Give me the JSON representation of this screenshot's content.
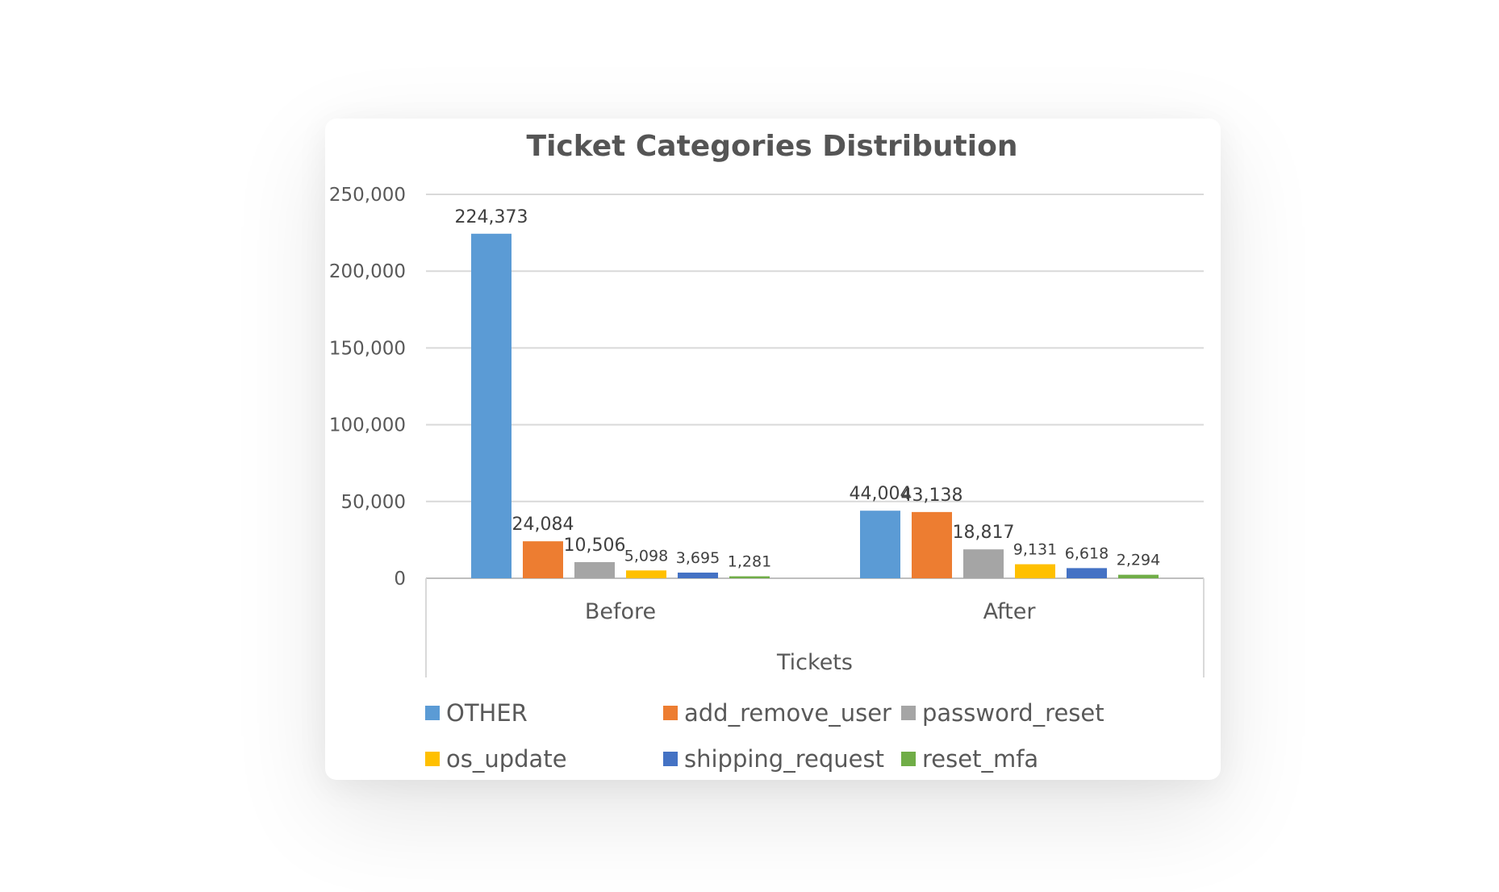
{
  "chart_data": {
    "type": "bar",
    "title": "Ticket Categories Distribution",
    "xlabel": "Tickets",
    "ylabel": "",
    "ylim": [
      0,
      250000
    ],
    "yticks": [
      0,
      50000,
      100000,
      150000,
      200000,
      250000
    ],
    "ytick_labels": [
      "0",
      "50,000",
      "100,000",
      "150,000",
      "200,000",
      "250,000"
    ],
    "categories": [
      "Before",
      "After"
    ],
    "grid": true,
    "legend_position": "bottom",
    "series": [
      {
        "name": "OTHER",
        "color": "#5B9BD5",
        "values": [
          224373,
          44004
        ],
        "labels": [
          "224,373",
          "44,004"
        ]
      },
      {
        "name": "add_remove_user",
        "color": "#ED7D31",
        "values": [
          24084,
          43138
        ],
        "labels": [
          "24,084",
          "43,138"
        ]
      },
      {
        "name": "password_reset",
        "color": "#A5A5A5",
        "values": [
          10506,
          18817
        ],
        "labels": [
          "10,506",
          "18,817"
        ]
      },
      {
        "name": "os_update",
        "color": "#FFC000",
        "values": [
          5098,
          9131
        ],
        "labels": [
          "5,098",
          "9,131"
        ]
      },
      {
        "name": "shipping_request",
        "color": "#4472C4",
        "values": [
          3695,
          6618
        ],
        "labels": [
          "3,695",
          "6,618"
        ]
      },
      {
        "name": "reset_mfa",
        "color": "#70AD47",
        "values": [
          1281,
          2294
        ],
        "labels": [
          "1,281",
          "2,294"
        ]
      }
    ]
  }
}
